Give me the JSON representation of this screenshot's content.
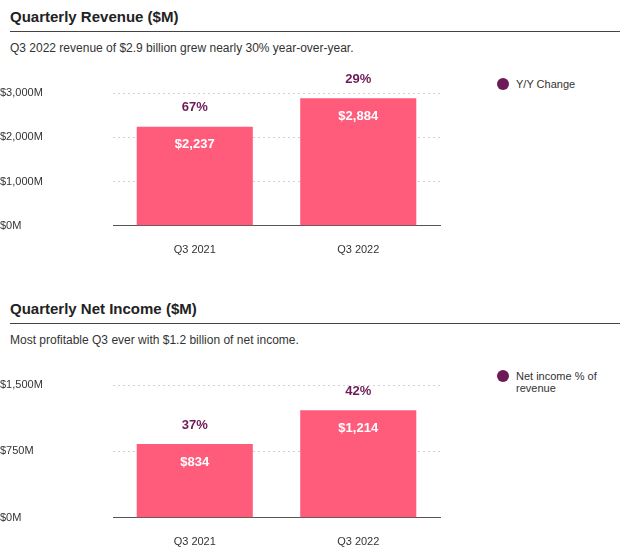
{
  "chart_data": [
    {
      "type": "bar",
      "title": "Quarterly Revenue ($M)",
      "subtitle": "Q3 2022 revenue of $2.9 billion grew nearly 30% year-over-year.",
      "categories": [
        "Q3 2021",
        "Q3 2022"
      ],
      "values": [
        2237,
        2884
      ],
      "value_labels": [
        "$2,237",
        "$2,884"
      ],
      "color": "#ff5c7c",
      "data_labels": true,
      "ylim": [
        0,
        3000
      ],
      "yticks": [
        {
          "value": 0,
          "label": "$0M"
        },
        {
          "value": 1000,
          "label": "$1,000M"
        },
        {
          "value": 2000,
          "label": "$2,000M"
        },
        {
          "value": 3000,
          "label": "$3,000M"
        }
      ],
      "grid": true,
      "legend": "right",
      "annotations": {
        "name": "Y/Y Change",
        "values": [
          67,
          29
        ],
        "value_labels": [
          "67%",
          "29%"
        ],
        "color": "#6e1a57"
      }
    },
    {
      "type": "bar",
      "title": "Quarterly Net Income ($M)",
      "subtitle": "Most profitable Q3 ever with $1.2 billion of net income.",
      "categories": [
        "Q3 2021",
        "Q3 2022"
      ],
      "values": [
        834,
        1214
      ],
      "value_labels": [
        "$834",
        "$1,214"
      ],
      "color": "#ff5c7c",
      "data_labels": true,
      "ylim": [
        0,
        1500
      ],
      "yticks": [
        {
          "value": 0,
          "label": "$0M"
        },
        {
          "value": 750,
          "label": "$750M"
        },
        {
          "value": 1500,
          "label": "$1,500M"
        }
      ],
      "grid": true,
      "legend": "right",
      "annotations": {
        "name": "Net income % of revenue",
        "values": [
          37,
          42
        ],
        "value_labels": [
          "37%",
          "42%"
        ],
        "color": "#6e1a57"
      }
    }
  ]
}
